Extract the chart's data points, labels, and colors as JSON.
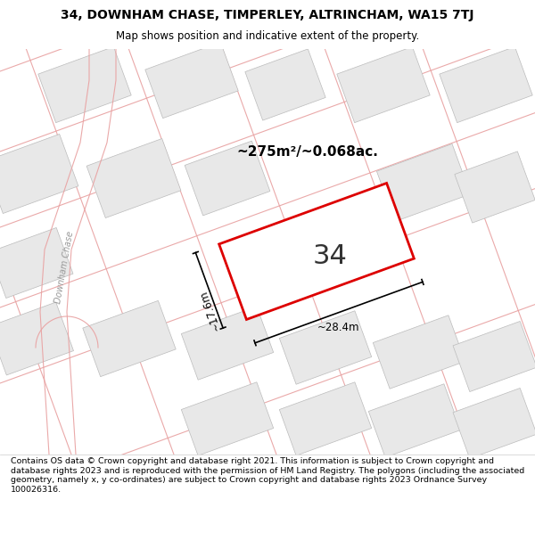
{
  "title_line1": "34, DOWNHAM CHASE, TIMPERLEY, ALTRINCHAM, WA15 7TJ",
  "title_line2": "Map shows position and indicative extent of the property.",
  "footer_text": "Contains OS data © Crown copyright and database right 2021. This information is subject to Crown copyright and database rights 2023 and is reproduced with the permission of HM Land Registry. The polygons (including the associated geometry, namely x, y co-ordinates) are subject to Crown copyright and database rights 2023 Ordnance Survey 100026316.",
  "area_label": "~275m²/~0.068ac.",
  "dim_width": "~28.4m",
  "dim_height": "~17.6m",
  "plot_number": "34",
  "map_bg": "#ffffff",
  "building_fill": "#e8e8e8",
  "building_edge": "#e8a0a0",
  "road_line": "#e8a0a0",
  "highlight_color": "#dd0000",
  "street_label": "Downham Chase",
  "title_bg": "#ffffff",
  "footer_bg": "#ffffff",
  "dim_color": "#000000"
}
